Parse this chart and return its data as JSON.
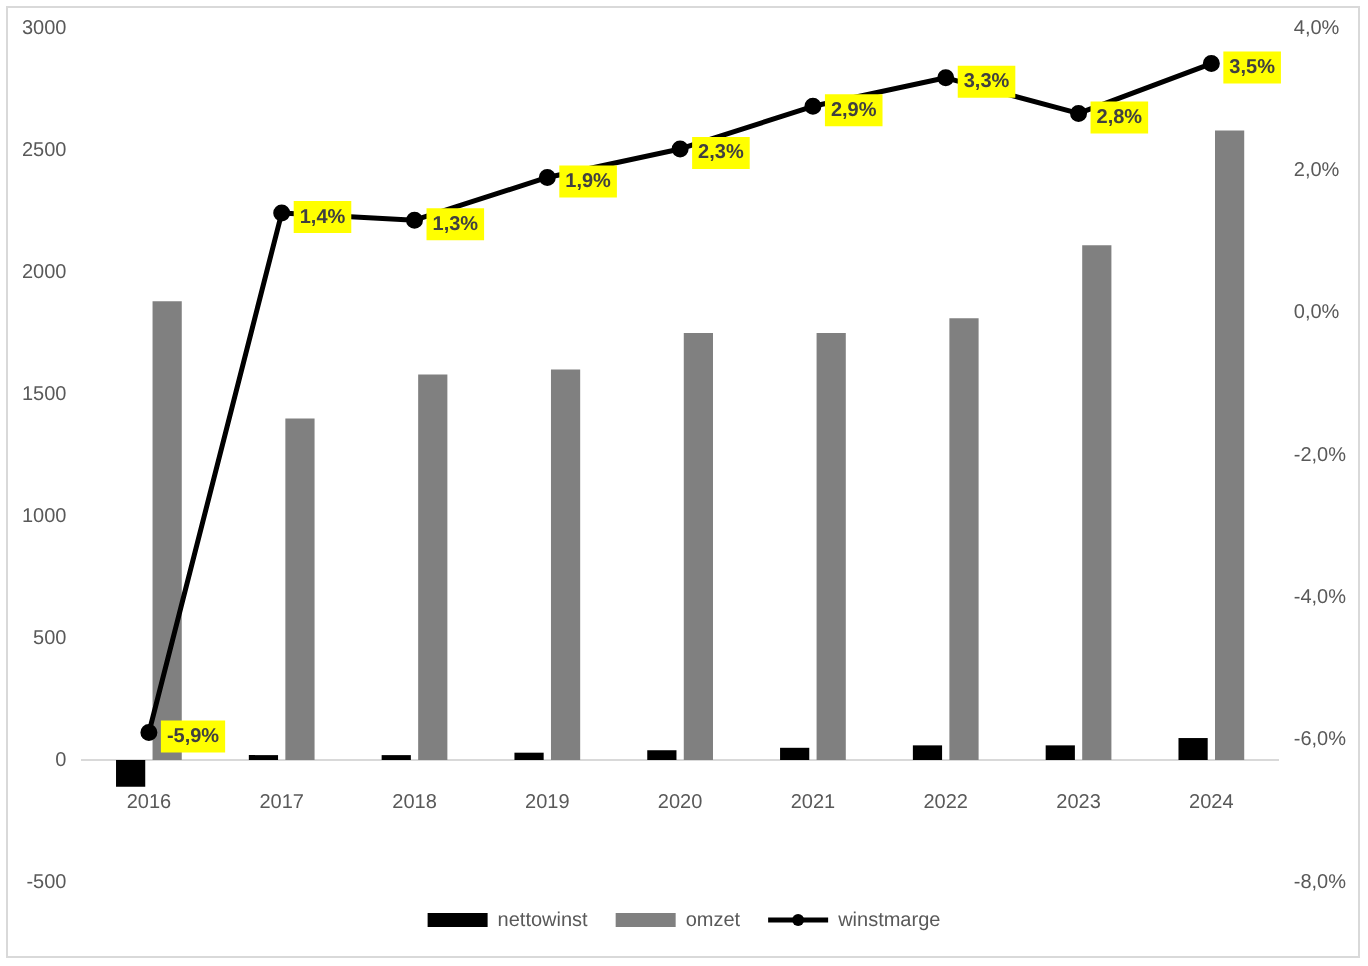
{
  "chart_data": {
    "type": "bar",
    "categories": [
      "2016",
      "2017",
      "2018",
      "2019",
      "2020",
      "2021",
      "2022",
      "2023",
      "2024"
    ],
    "series": [
      {
        "name": "nettowinst",
        "color": "#000000",
        "values": [
          -110,
          20,
          20,
          30,
          40,
          50,
          60,
          60,
          90
        ]
      },
      {
        "name": "omzet",
        "color": "#808080",
        "values": [
          1880,
          1400,
          1580,
          1600,
          1750,
          1750,
          1810,
          2110,
          2580
        ]
      },
      {
        "name": "winstmarge",
        "type": "line",
        "axis": "y2",
        "color": "#000000",
        "marker": "circle",
        "values": [
          -5.9,
          1.4,
          1.3,
          1.9,
          2.3,
          2.9,
          3.3,
          2.8,
          3.5
        ],
        "value_labels": [
          "-5,9%",
          "1,4%",
          "1,3%",
          "1,9%",
          "2,3%",
          "2,9%",
          "3,3%",
          "2,8%",
          "3,5%"
        ]
      }
    ],
    "ylim": [
      -500,
      3000
    ],
    "yticks": [
      -500,
      0,
      500,
      1000,
      1500,
      2000,
      2500,
      3000
    ],
    "y2lim": [
      -8,
      4
    ],
    "y2ticks": [
      {
        "value": -8,
        "label": "-8,0%"
      },
      {
        "value": -6,
        "label": "-6,0%"
      },
      {
        "value": -4,
        "label": "-4,0%"
      },
      {
        "value": -2,
        "label": "-2,0%"
      },
      {
        "value": 0,
        "label": "0,0%"
      },
      {
        "value": 2,
        "label": "2,0%"
      },
      {
        "value": 4,
        "label": "4,0%"
      }
    ],
    "legend": "bottom"
  }
}
